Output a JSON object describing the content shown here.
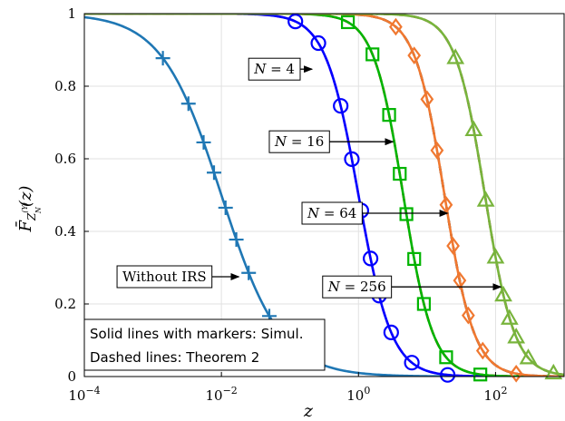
{
  "chart_data": {
    "type": "line",
    "xlabel": "z",
    "ylabel": "F̄",
    "ylabel_sub": "Z",
    "ylabel_sub_sup": "(Y)",
    "ylabel_sub_sub": "N",
    "ylabel_arg": "(z)",
    "x_scale": "log",
    "xlim": [
      0.0001,
      1000
    ],
    "ylim": [
      0,
      1
    ],
    "grid": true,
    "x_ticks": [
      {
        "value": 0.0001,
        "base": "10",
        "exp": "−4"
      },
      {
        "value": 0.01,
        "base": "10",
        "exp": "−2"
      },
      {
        "value": 1,
        "base": "10",
        "exp": "0"
      },
      {
        "value": 100,
        "base": "10",
        "exp": "2"
      }
    ],
    "y_ticks": [
      {
        "value": 0,
        "label": "0"
      },
      {
        "value": 0.2,
        "label": "0.2"
      },
      {
        "value": 0.4,
        "label": "0.4"
      },
      {
        "value": 0.6,
        "label": "0.6"
      },
      {
        "value": 0.8,
        "label": "0.8"
      },
      {
        "value": 1,
        "label": "1"
      }
    ],
    "legend": {
      "placement": "bottom-left",
      "lines": [
        "Solid lines with markers: Simul.",
        "Dashed lines: Theorem 2"
      ]
    },
    "series": [
      {
        "label_tag": "without",
        "median": 0.01,
        "shape": 1.0,
        "color": "#1f77b4",
        "marker": "plus",
        "dashed_color": null,
        "markers_x": [
          0.0014,
          0.0033,
          0.0055,
          0.0078,
          0.0115,
          0.0165,
          0.025,
          0.05,
          0.12
        ]
      },
      {
        "label_tag": "n4",
        "median": 1.0,
        "shape": 1.8,
        "color": "#0000ff",
        "marker": "circle",
        "dashed_color": "#e632e6",
        "markers_x": [
          0.12,
          0.26,
          0.55,
          0.8,
          1.1,
          1.5,
          2.0,
          3.0,
          6.0,
          20.0
        ]
      },
      {
        "label_tag": "n16",
        "median": 4.5,
        "shape": 2.0,
        "color": "#00b400",
        "marker": "square",
        "dashed_color": "#ff0000",
        "markers_x": [
          0.7,
          1.6,
          2.8,
          4.0,
          5.0,
          6.5,
          9.0,
          19.0,
          60.0
        ]
      },
      {
        "label_tag": "n64",
        "median": 18.0,
        "shape": 2.0,
        "color": "#f07830",
        "marker": "diamond",
        "dashed_color": "#000000",
        "markers_x": [
          3.5,
          6.5,
          10.0,
          14.0,
          19.0,
          24.0,
          30.0,
          40.0,
          65.0,
          200.0
        ]
      },
      {
        "label_tag": "n256",
        "median": 70.0,
        "shape": 2.0,
        "color": "#78b43c",
        "marker": "triangle",
        "dashed_color": "#8b1a1a",
        "markers_x": [
          26.0,
          48.0,
          72.0,
          100.0,
          130.0,
          160.0,
          200.0,
          300.0,
          700.0
        ]
      }
    ],
    "annotations": [
      {
        "tag": "without",
        "text": "Without IRS",
        "box_x": 0.0003,
        "box_y": 0.275,
        "arrow_to_x": 0.018,
        "arrow_to_y": 0.275
      },
      {
        "tag": "n4",
        "text": "N = 4",
        "box_x": 0.025,
        "box_y": 0.847,
        "arrow_to_x": 0.21,
        "arrow_to_y": 0.847
      },
      {
        "tag": "n16",
        "text": "N = 16",
        "box_x": 0.05,
        "box_y": 0.647,
        "arrow_to_x": 3.2,
        "arrow_to_y": 0.647
      },
      {
        "tag": "n64",
        "text": "N = 64",
        "box_x": 0.15,
        "box_y": 0.45,
        "arrow_to_x": 20.0,
        "arrow_to_y": 0.45
      },
      {
        "tag": "n256",
        "text": "N = 256",
        "box_x": 0.3,
        "box_y": 0.247,
        "arrow_to_x": 120.0,
        "arrow_to_y": 0.247
      }
    ]
  }
}
